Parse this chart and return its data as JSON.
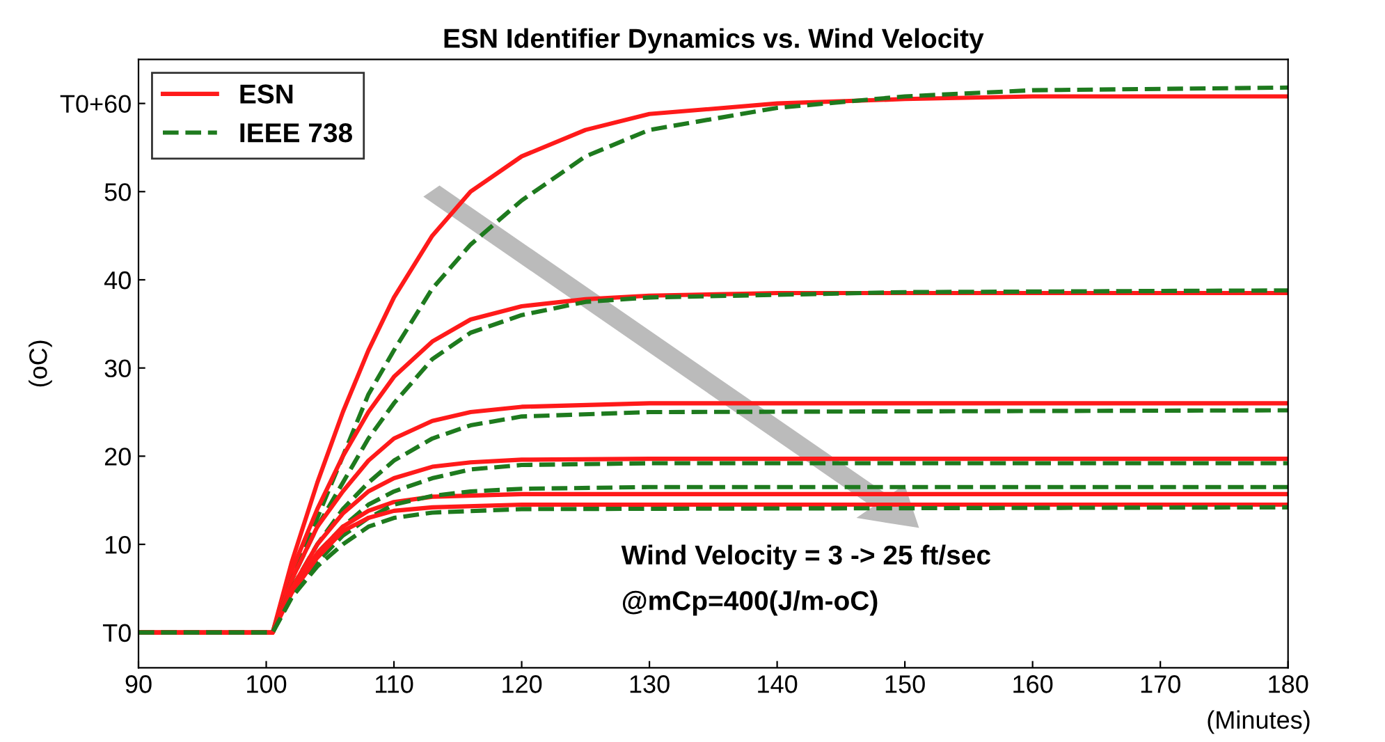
{
  "chart_data": {
    "type": "line",
    "title": "ESN Identifier Dynamics vs. Wind Velocity",
    "xlabel": "(Minutes)",
    "ylabel": "(oC)",
    "xlim": [
      90,
      180
    ],
    "ylim": [
      -4,
      65
    ],
    "xticks": [
      90,
      100,
      110,
      120,
      130,
      140,
      150,
      160,
      170,
      180
    ],
    "yticks": [
      {
        "value": 0,
        "label": "T0"
      },
      10,
      20,
      30,
      40,
      50,
      {
        "value": 60,
        "label": "T0+60"
      }
    ],
    "grid": false,
    "legend": "top left",
    "marker": "none",
    "annotations": [
      "Wind Velocity = 3 -> 25 ft/sec",
      "@mCp=400(J/m-oC)"
    ],
    "series": [
      {
        "name": "ESN",
        "color": "#ff1a1a",
        "line_style": "solid",
        "x": [
          90,
          100.5,
          102,
          104,
          106,
          108,
          110,
          113,
          116,
          120,
          125,
          130,
          140,
          150,
          160,
          180
        ],
        "values": [
          0,
          0,
          8,
          17,
          25,
          32,
          38,
          45,
          50,
          54,
          57,
          58.8,
          60,
          60.5,
          60.8,
          60.8
        ]
      },
      {
        "name": "IEEE 738",
        "color": "#1e7a1e",
        "line_style": "dashed",
        "x": [
          90,
          100.5,
          102,
          104,
          106,
          108,
          110,
          113,
          116,
          120,
          125,
          130,
          140,
          150,
          160,
          180
        ],
        "values": [
          0,
          0,
          6,
          13,
          20,
          27,
          32,
          39,
          44,
          49,
          54,
          57,
          59.5,
          60.8,
          61.5,
          61.8
        ]
      },
      {
        "color": "#ff1a1a",
        "line_style": "solid",
        "x": [
          90,
          100.5,
          102,
          104,
          106,
          108,
          110,
          113,
          116,
          120,
          125,
          130,
          140,
          180
        ],
        "values": [
          0,
          0,
          7,
          14,
          20,
          25,
          29,
          33,
          35.5,
          37,
          37.8,
          38.2,
          38.5,
          38.5
        ]
      },
      {
        "color": "#1e7a1e",
        "line_style": "dashed",
        "x": [
          90,
          100.5,
          102,
          104,
          106,
          108,
          110,
          113,
          116,
          120,
          125,
          130,
          140,
          150,
          180
        ],
        "values": [
          0,
          0,
          6,
          12,
          17,
          22,
          26,
          31,
          34,
          36,
          37.5,
          38,
          38.3,
          38.6,
          38.8
        ]
      },
      {
        "color": "#ff1a1a",
        "line_style": "solid",
        "x": [
          90,
          100.5,
          102,
          104,
          106,
          108,
          110,
          113,
          116,
          120,
          130,
          180
        ],
        "values": [
          0,
          0,
          6,
          12,
          16,
          19.5,
          22,
          24,
          25,
          25.6,
          26,
          26
        ]
      },
      {
        "color": "#1e7a1e",
        "line_style": "dashed",
        "x": [
          90,
          100.5,
          102,
          104,
          106,
          108,
          110,
          113,
          116,
          120,
          130,
          180
        ],
        "values": [
          0,
          0,
          5,
          10,
          14,
          17,
          19.5,
          22,
          23.5,
          24.5,
          25,
          25.2
        ]
      },
      {
        "color": "#ff1a1a",
        "line_style": "solid",
        "x": [
          90,
          100.5,
          102,
          104,
          106,
          108,
          110,
          113,
          116,
          120,
          130,
          180
        ],
        "values": [
          0,
          0,
          5,
          10,
          13.5,
          16,
          17.5,
          18.8,
          19.3,
          19.6,
          19.7,
          19.7
        ]
      },
      {
        "color": "#1e7a1e",
        "line_style": "dashed",
        "x": [
          90,
          100.5,
          102,
          104,
          106,
          108,
          110,
          113,
          116,
          120,
          130,
          180
        ],
        "values": [
          0,
          0,
          4.5,
          9,
          12,
          14.5,
          16,
          17.5,
          18.5,
          19,
          19.2,
          19.2
        ]
      },
      {
        "color": "#ff1a1a",
        "line_style": "solid",
        "x": [
          90,
          100.5,
          102,
          104,
          106,
          108,
          110,
          113,
          120,
          180
        ],
        "values": [
          0,
          0,
          5,
          9,
          12,
          13.8,
          14.8,
          15.4,
          15.7,
          15.7
        ]
      },
      {
        "color": "#1e7a1e",
        "line_style": "dashed",
        "x": [
          90,
          100.5,
          102,
          104,
          106,
          108,
          110,
          113,
          116,
          120,
          130,
          180
        ],
        "values": [
          0,
          0,
          4,
          8,
          11,
          13,
          14.5,
          15.5,
          16,
          16.3,
          16.5,
          16.5
        ]
      },
      {
        "color": "#ff1a1a",
        "line_style": "solid",
        "x": [
          90,
          100.5,
          102,
          104,
          106,
          108,
          110,
          113,
          120,
          180
        ],
        "values": [
          0,
          0,
          4.5,
          8.5,
          11.5,
          13,
          13.8,
          14.2,
          14.5,
          14.5
        ]
      },
      {
        "color": "#1e7a1e",
        "line_style": "dashed",
        "x": [
          90,
          100.5,
          102,
          104,
          106,
          108,
          110,
          113,
          120,
          180
        ],
        "values": [
          0,
          0,
          4,
          7.5,
          10,
          12,
          13,
          13.6,
          14,
          14.2
        ]
      }
    ]
  }
}
